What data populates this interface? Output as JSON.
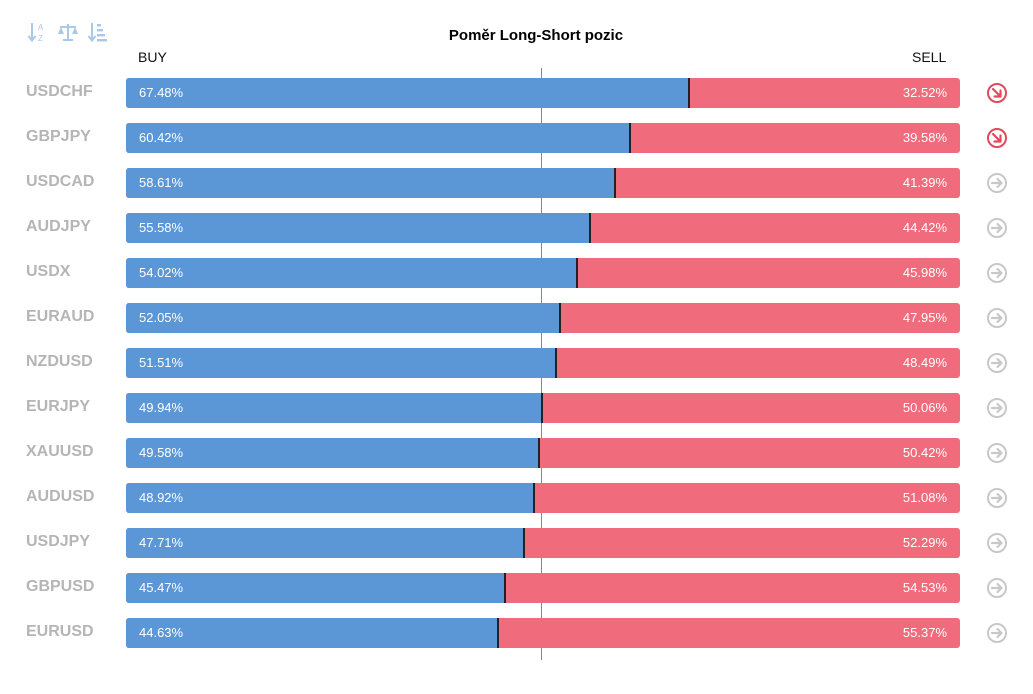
{
  "title": "Poměr Long-Short pozic",
  "headers": {
    "buy": "BUY",
    "sell": "SELL"
  },
  "toolbar": {
    "icons": [
      "sort-alpha-icon",
      "balance-scale-icon",
      "sort-amount-icon"
    ]
  },
  "colors": {
    "buy": "#5b96d6",
    "sell": "#f06b7b",
    "symbol": "#b5b5b5",
    "arrow_down": "#e2495c",
    "arrow_neutral": "#c8c8c8"
  },
  "rows": [
    {
      "symbol": "USDCHF",
      "buy": 67.48,
      "buy_label": "67.48%",
      "sell_label": "32.52%",
      "signal": "down"
    },
    {
      "symbol": "GBPJPY",
      "buy": 60.42,
      "buy_label": "60.42%",
      "sell_label": "39.58%",
      "signal": "down"
    },
    {
      "symbol": "USDCAD",
      "buy": 58.61,
      "buy_label": "58.61%",
      "sell_label": "41.39%",
      "signal": "neutral"
    },
    {
      "symbol": "AUDJPY",
      "buy": 55.58,
      "buy_label": "55.58%",
      "sell_label": "44.42%",
      "signal": "neutral"
    },
    {
      "symbol": "USDX",
      "buy": 54.02,
      "buy_label": "54.02%",
      "sell_label": "45.98%",
      "signal": "neutral"
    },
    {
      "symbol": "EURAUD",
      "buy": 52.05,
      "buy_label": "52.05%",
      "sell_label": "47.95%",
      "signal": "neutral"
    },
    {
      "symbol": "NZDUSD",
      "buy": 51.51,
      "buy_label": "51.51%",
      "sell_label": "48.49%",
      "signal": "neutral"
    },
    {
      "symbol": "EURJPY",
      "buy": 49.94,
      "buy_label": "49.94%",
      "sell_label": "50.06%",
      "signal": "neutral"
    },
    {
      "symbol": "XAUUSD",
      "buy": 49.58,
      "buy_label": "49.58%",
      "sell_label": "50.42%",
      "signal": "neutral"
    },
    {
      "symbol": "AUDUSD",
      "buy": 48.92,
      "buy_label": "48.92%",
      "sell_label": "51.08%",
      "signal": "neutral"
    },
    {
      "symbol": "USDJPY",
      "buy": 47.71,
      "buy_label": "47.71%",
      "sell_label": "52.29%",
      "signal": "neutral"
    },
    {
      "symbol": "GBPUSD",
      "buy": 45.47,
      "buy_label": "45.47%",
      "sell_label": "54.53%",
      "signal": "neutral"
    },
    {
      "symbol": "EURUSD",
      "buy": 44.63,
      "buy_label": "44.63%",
      "sell_label": "55.37%",
      "signal": "neutral"
    }
  ]
}
